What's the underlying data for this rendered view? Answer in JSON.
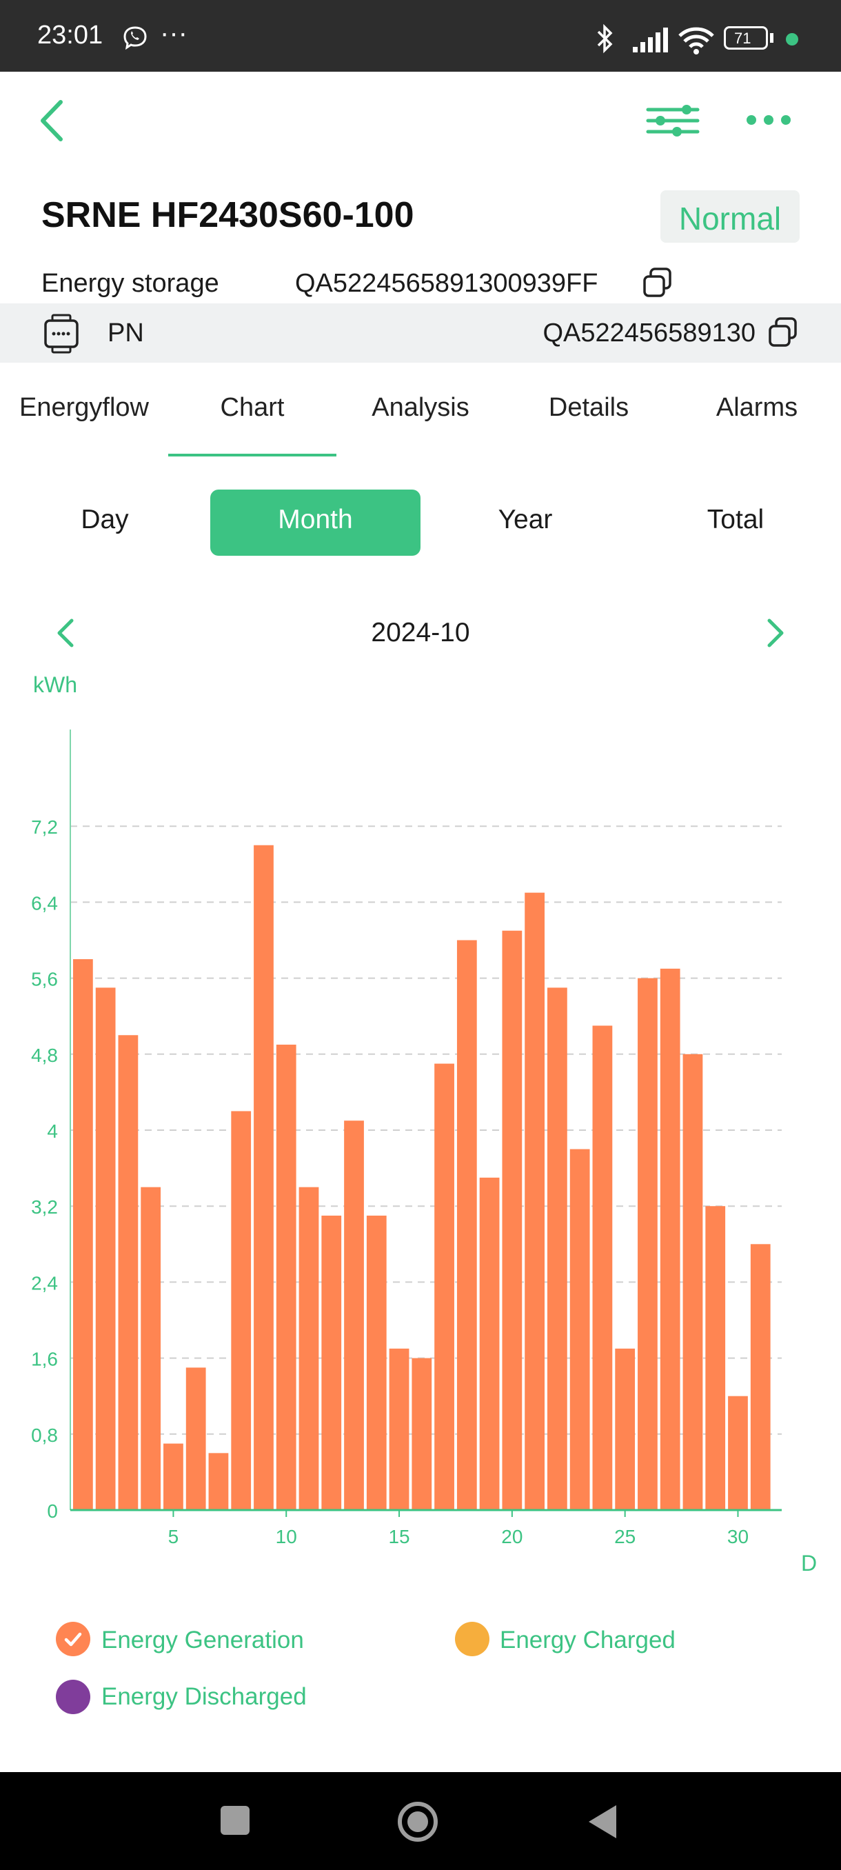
{
  "status_bar": {
    "time": "23:01",
    "battery": "71"
  },
  "header": {
    "back_icon": "chevron-left-icon",
    "filter_icon": "sliders-icon",
    "more_icon": "more-horizontal-icon"
  },
  "device": {
    "name": "SRNE HF2430S60-100",
    "status": "Normal",
    "type_label": "Energy storage",
    "serial": "QA5224565891300939FF",
    "pn_label": "PN",
    "pn_value": "QA522456589130"
  },
  "tabs": [
    {
      "label": "Energyflow"
    },
    {
      "label": "Chart"
    },
    {
      "label": "Analysis"
    },
    {
      "label": "Details"
    },
    {
      "label": "Alarms"
    }
  ],
  "periods": [
    {
      "label": "Day"
    },
    {
      "label": "Month"
    },
    {
      "label": "Year"
    },
    {
      "label": "Total"
    }
  ],
  "date_nav": {
    "current": "2024-10"
  },
  "colors": {
    "accent": "#3cc383",
    "bar": "#ff8552",
    "charged": "#f6ae3d",
    "discharged": "#803d9b"
  },
  "chart_data": {
    "type": "bar",
    "unit_label": "kWh",
    "x_unit_label": "D",
    "x": [
      1,
      2,
      3,
      4,
      5,
      6,
      7,
      8,
      9,
      10,
      11,
      12,
      13,
      14,
      15,
      16,
      17,
      18,
      19,
      20,
      21,
      22,
      23,
      24,
      25,
      26,
      27,
      28,
      29,
      30,
      31
    ],
    "x_tick_labels": [
      "5",
      "10",
      "15",
      "20",
      "25",
      "30"
    ],
    "x_tick_values": [
      5,
      10,
      15,
      20,
      25,
      30
    ],
    "y_tick_labels": [
      "0",
      "0,8",
      "1,6",
      "2,4",
      "3,2",
      "4",
      "4,8",
      "5,6",
      "6,4",
      "7,2"
    ],
    "ylim": [
      0,
      8
    ],
    "grid": true,
    "series": [
      {
        "name": "Energy Generation",
        "values": [
          5.8,
          5.5,
          5.0,
          3.4,
          0.7,
          1.5,
          0.6,
          4.2,
          7.0,
          4.9,
          3.4,
          3.1,
          4.1,
          3.1,
          1.7,
          1.6,
          4.7,
          6.0,
          3.5,
          6.1,
          6.5,
          5.5,
          3.8,
          5.1,
          1.7,
          5.6,
          5.7,
          4.8,
          3.2,
          1.2,
          2.8
        ]
      }
    ],
    "legend": [
      {
        "label": "Energy Generation",
        "checked": true
      },
      {
        "label": "Energy Charged"
      },
      {
        "label": "Energy Discharged"
      }
    ]
  }
}
